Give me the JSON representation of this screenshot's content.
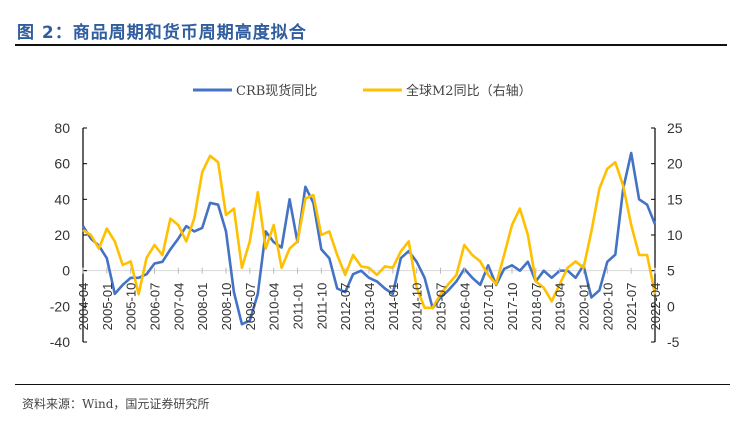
{
  "title": "图 2：商品周期和货币周期高度拟合",
  "source": "资料来源：Wind，国元证券研究所",
  "chart_data": {
    "type": "line",
    "title": "图 2：商品周期和货币周期高度拟合",
    "legend_position": "top-center",
    "grid": false,
    "x_tick_labels": [
      "2004-04",
      "2005-01",
      "2005-10",
      "2006-07",
      "2007-04",
      "2008-01",
      "2008-10",
      "2009-07",
      "2010-04",
      "2011-01",
      "2011-10",
      "2012-07",
      "2013-04",
      "2014-01",
      "2014-10",
      "2015-07",
      "2016-04",
      "2017-01",
      "2017-10",
      "2018-07",
      "2019-04",
      "2020-01",
      "2020-10",
      "2021-07",
      "2022-04"
    ],
    "x": [
      "2004-04",
      "2004-07",
      "2004-10",
      "2005-01",
      "2005-04",
      "2005-07",
      "2005-10",
      "2006-01",
      "2006-04",
      "2006-07",
      "2006-10",
      "2007-01",
      "2007-04",
      "2007-07",
      "2007-10",
      "2008-01",
      "2008-04",
      "2008-07",
      "2008-10",
      "2009-01",
      "2009-04",
      "2009-07",
      "2009-10",
      "2010-01",
      "2010-04",
      "2010-07",
      "2010-10",
      "2011-01",
      "2011-04",
      "2011-07",
      "2011-10",
      "2012-01",
      "2012-04",
      "2012-07",
      "2012-10",
      "2013-01",
      "2013-04",
      "2013-07",
      "2013-10",
      "2014-01",
      "2014-04",
      "2014-07",
      "2014-10",
      "2015-01",
      "2015-04",
      "2015-07",
      "2015-10",
      "2016-01",
      "2016-04",
      "2016-07",
      "2016-10",
      "2017-01",
      "2017-04",
      "2017-07",
      "2017-10",
      "2018-01",
      "2018-04",
      "2018-07",
      "2018-10",
      "2019-01",
      "2019-04",
      "2019-07",
      "2019-10",
      "2020-01",
      "2020-04",
      "2020-07",
      "2020-10",
      "2021-01",
      "2021-04",
      "2021-07",
      "2021-10",
      "2022-01",
      "2022-04"
    ],
    "left_axis": {
      "ylim": [
        -40,
        80
      ],
      "ticks": [
        80,
        60,
        40,
        20,
        0,
        -20,
        -40
      ]
    },
    "right_axis": {
      "ylim": [
        -5,
        25
      ],
      "ticks": [
        25,
        20,
        15,
        10,
        5,
        0,
        -5
      ]
    },
    "series": [
      {
        "name": "CRB现货同比",
        "axis": "left",
        "color": "#4472C4",
        "values": [
          25,
          18,
          14,
          7,
          -13,
          -8,
          -4,
          -4,
          -2,
          4,
          5,
          12,
          18,
          25,
          22,
          24,
          38,
          37,
          22,
          -12,
          -30,
          -28,
          -13,
          22,
          16,
          13,
          40,
          16,
          47,
          38,
          12,
          7,
          -10,
          -12,
          -2,
          0,
          -4,
          -6,
          -10,
          -13,
          7,
          11,
          5,
          -4,
          -21,
          -15,
          -11,
          -6,
          1,
          -4,
          -8,
          3,
          -8,
          1,
          3,
          0,
          5,
          -6,
          0,
          -4,
          0,
          0,
          -4,
          3,
          -15,
          -11,
          5,
          9,
          46,
          66,
          40,
          37,
          26
        ]
      },
      {
        "name": "全球M2同比（右轴）",
        "axis": "right",
        "color": "#FFC000",
        "values": [
          10.7,
          10,
          8.1,
          10.9,
          9.1,
          5.8,
          6.3,
          1.7,
          6.8,
          8.6,
          7.2,
          12.3,
          11.4,
          9.1,
          12.3,
          18.8,
          21.1,
          20.2,
          12.8,
          13.7,
          5.4,
          9.1,
          16,
          8.1,
          11.4,
          5.4,
          8.1,
          9.1,
          15.1,
          15.6,
          10,
          10.5,
          7.2,
          4.4,
          7.2,
          5.6,
          5.4,
          4.4,
          5.6,
          5.4,
          7.7,
          9.1,
          2.6,
          -0.2,
          -0.2,
          1.7,
          3.1,
          4.4,
          8.6,
          7.2,
          6.3,
          4.4,
          3.1,
          7.2,
          11.4,
          13.7,
          10,
          3.5,
          2.6,
          0.7,
          3.1,
          5.4,
          6.3,
          5.4,
          10.5,
          16.5,
          19.3,
          20.2,
          16.9,
          11.4,
          7.2,
          7.2,
          1.7
        ]
      }
    ]
  }
}
